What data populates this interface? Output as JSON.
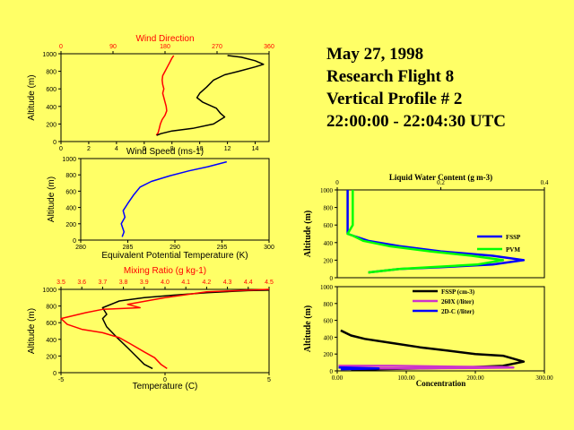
{
  "header": {
    "date": "May 27, 1998",
    "flight": "Research Flight 8",
    "profile": "Vertical Profile # 2",
    "time_range": "22:00:00 - 22:04:30 UTC"
  },
  "colors": {
    "background": "#ffff66",
    "red": "#ff0000",
    "black": "#000000",
    "blue": "#0000ff",
    "green": "#00ff00",
    "magenta": "#cc33cc"
  },
  "chart_data": [
    {
      "id": "wind",
      "type": "line",
      "title": "Wind Direction",
      "xlabel": "Wind Speed (ms-1)",
      "ylabel": "Altitude (m)",
      "xlim": [
        0,
        15
      ],
      "ylim": [
        0,
        1000
      ],
      "xticks": [
        "0",
        "2",
        "4",
        "6",
        "8",
        "10",
        "12",
        "14"
      ],
      "yticks": [
        "0",
        "200",
        "400",
        "600",
        "800",
        "1000"
      ],
      "top_xlim": [
        0,
        360
      ],
      "top_xticks": [
        "0",
        "90",
        "180",
        "270",
        "360"
      ],
      "series": [
        {
          "name": "Wind Direction",
          "axis": "top",
          "color": "#ff0000",
          "x": [
            165,
            168,
            170,
            172,
            175,
            180,
            183,
            182,
            180,
            178,
            176,
            178,
            176,
            175,
            176,
            180,
            184,
            188,
            192,
            195
          ],
          "y": [
            70,
            100,
            150,
            200,
            250,
            300,
            350,
            400,
            450,
            500,
            550,
            600,
            650,
            700,
            750,
            800,
            850,
            900,
            950,
            980
          ]
        },
        {
          "name": "Wind Speed",
          "axis": "bottom",
          "color": "#000000",
          "x": [
            6.9,
            7.2,
            8.0,
            9.5,
            11.0,
            11.8,
            11.5,
            11.2,
            10.2,
            9.8,
            10.0,
            10.5,
            11.0,
            11.8,
            12.8,
            14.0,
            14.6,
            14.0,
            13.0,
            12.0
          ],
          "y": [
            70,
            90,
            120,
            150,
            200,
            280,
            320,
            380,
            450,
            500,
            550,
            620,
            700,
            760,
            800,
            850,
            880,
            920,
            960,
            980
          ]
        }
      ]
    },
    {
      "id": "theta",
      "type": "line",
      "xlabel": "Equivalent Potential Temperature (K)",
      "ylabel": "Altitude (m)",
      "xlim": [
        280,
        300
      ],
      "ylim": [
        0,
        1000
      ],
      "xticks": [
        "280",
        "285",
        "290",
        "295",
        "300"
      ],
      "yticks": [
        "0",
        "200",
        "400",
        "600",
        "800",
        "1000"
      ],
      "series": [
        {
          "name": "Equivalent Potential Temperature",
          "color": "#0000ff",
          "x": [
            284.4,
            284.6,
            284.3,
            284.7,
            284.5,
            285.0,
            285.6,
            286.3,
            287.5,
            289.5,
            291.5,
            293.5,
            295.5
          ],
          "y": [
            40,
            100,
            200,
            280,
            360,
            450,
            550,
            650,
            720,
            790,
            850,
            900,
            960
          ]
        }
      ]
    },
    {
      "id": "temp_mr",
      "type": "line",
      "title": "Mixing Ratio (g kg-1)",
      "xlabel": "Temperature (C)",
      "ylabel": "Altitude (m)",
      "xlim": [
        -5,
        5
      ],
      "ylim": [
        0,
        1000
      ],
      "xticks": [
        "-5",
        "0",
        "5"
      ],
      "yticks": [
        "0",
        "200",
        "400",
        "600",
        "800",
        "1000"
      ],
      "top_xlim": [
        3.5,
        4.5
      ],
      "top_xticks": [
        "3.5",
        "3.6",
        "3.7",
        "3.8",
        "3.9",
        "4.0",
        "4.1",
        "4.2",
        "4.3",
        "4.4",
        "4.5"
      ],
      "series": [
        {
          "name": "Temperature",
          "axis": "bottom",
          "color": "#000000",
          "x": [
            -0.6,
            -1.0,
            -1.4,
            -1.8,
            -2.3,
            -2.8,
            -3.0,
            -2.8,
            -3.0,
            -2.2,
            -1.0,
            0.4,
            2.0,
            4.0,
            5.0
          ],
          "y": [
            50,
            100,
            200,
            300,
            420,
            550,
            650,
            700,
            780,
            860,
            900,
            930,
            960,
            985,
            990
          ]
        },
        {
          "name": "Mixing Ratio",
          "axis": "top",
          "color": "#ff0000",
          "x": [
            4.01,
            3.98,
            3.95,
            3.9,
            3.83,
            3.78,
            3.7,
            3.6,
            3.53,
            3.5,
            3.62,
            3.7,
            3.88,
            3.82,
            4.0,
            4.2,
            4.4,
            4.5
          ],
          "y": [
            50,
            100,
            180,
            250,
            350,
            420,
            480,
            520,
            580,
            650,
            720,
            760,
            780,
            820,
            900,
            970,
            990,
            1000
          ]
        }
      ]
    },
    {
      "id": "lwc",
      "type": "line",
      "title": "Liquid Water Content (g m-3)",
      "ylabel": "Altitude (m)",
      "top_xlim": [
        0,
        0.4
      ],
      "top_xticks": [
        "0",
        "0.2",
        "0.4"
      ],
      "ylim": [
        0,
        1000
      ],
      "yticks": [
        "0",
        "200",
        "400",
        "600",
        "800",
        "1000"
      ],
      "legend": [
        "FSSP",
        "PVM"
      ],
      "series": [
        {
          "name": "FSSP",
          "color": "#0000ff",
          "x": [
            0.02,
            0.02,
            0.02,
            0.03,
            0.06,
            0.12,
            0.2,
            0.3,
            0.36,
            0.3,
            0.2,
            0.12,
            0.06
          ],
          "y": [
            1000,
            600,
            500,
            480,
            420,
            360,
            300,
            250,
            200,
            150,
            120,
            100,
            60
          ]
        },
        {
          "name": "PVM",
          "color": "#00ff00",
          "x": [
            0.03,
            0.03,
            0.02,
            0.03,
            0.05,
            0.1,
            0.18,
            0.26,
            0.32,
            0.27,
            0.18,
            0.12,
            0.06
          ],
          "y": [
            1000,
            600,
            500,
            480,
            420,
            360,
            300,
            250,
            200,
            150,
            120,
            100,
            60
          ]
        }
      ]
    },
    {
      "id": "conc",
      "type": "line",
      "xlabel": "Concentration",
      "ylabel": "Altitude (m)",
      "xlim": [
        0,
        300
      ],
      "xticks": [
        "0.00",
        "100.00",
        "200.00",
        "300.00"
      ],
      "ylim": [
        0,
        1000
      ],
      "yticks": [
        "0",
        "200",
        "400",
        "600",
        "800",
        "1000"
      ],
      "legend": [
        "FSSP (cm-3)",
        "260X (/liter)",
        "2D-C (/liter)"
      ],
      "series": [
        {
          "name": "FSSP (cm-3)",
          "color": "#000000",
          "x": [
            5,
            20,
            40,
            80,
            120,
            160,
            200,
            240,
            270,
            240,
            180,
            120,
            60,
            20
          ],
          "y": [
            480,
            420,
            380,
            330,
            280,
            240,
            200,
            180,
            110,
            60,
            40,
            30,
            20,
            10
          ]
        },
        {
          "name": "260X (/liter)",
          "color": "#cc33cc",
          "x": [
            2,
            80,
            160,
            240,
            255,
            200,
            100,
            10
          ],
          "y": [
            60,
            60,
            50,
            45,
            40,
            35,
            30,
            30
          ]
        },
        {
          "name": "2D-C (/liter)",
          "color": "#0000ff",
          "x": [
            2,
            10,
            30,
            60,
            40,
            5
          ],
          "y": [
            40,
            40,
            35,
            30,
            25,
            20
          ]
        }
      ]
    }
  ]
}
